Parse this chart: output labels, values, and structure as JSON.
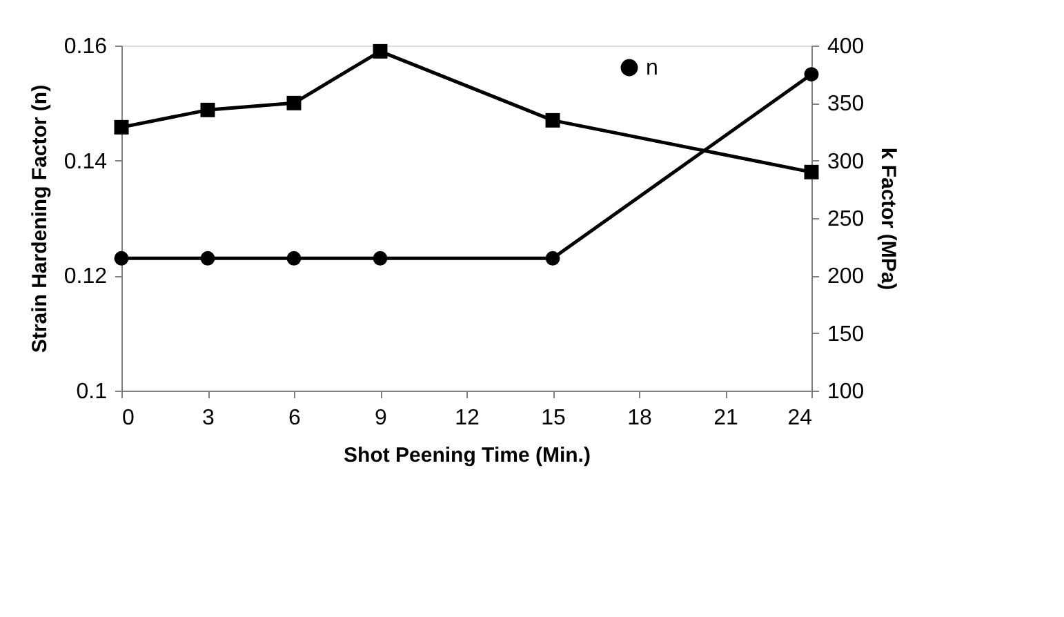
{
  "chart_data": {
    "type": "line",
    "xlabel": "Shot Peening Time (Min.)",
    "ylabel": "Strain Hardening Factor (n)",
    "y2label": "k Factor (MPa)",
    "xlim": [
      0,
      24
    ],
    "xticks": [
      0,
      3,
      6,
      9,
      12,
      15,
      18,
      21,
      24
    ],
    "ylim": [
      0.1,
      0.16
    ],
    "yticks": [
      0.1,
      0.12,
      0.14,
      0.16
    ],
    "y2lim": [
      100,
      400
    ],
    "y2ticks": [
      100,
      150,
      200,
      250,
      300,
      350,
      400
    ],
    "legend": "top right",
    "grid": false,
    "line_style": "solid",
    "series": [
      {
        "name": "n",
        "color": "#000000",
        "marker": "circle",
        "x": [
          0,
          3,
          6,
          9,
          15,
          24
        ],
        "values": [
          0.123,
          0.123,
          0.123,
          0.123,
          0.123,
          0.155
        ]
      },
      {
        "color": "#000000",
        "marker": "square",
        "axis": "y2",
        "x": [
          0,
          3,
          6,
          9,
          15,
          24
        ],
        "values": [
          329,
          344,
          350,
          395,
          335,
          290
        ]
      }
    ]
  }
}
